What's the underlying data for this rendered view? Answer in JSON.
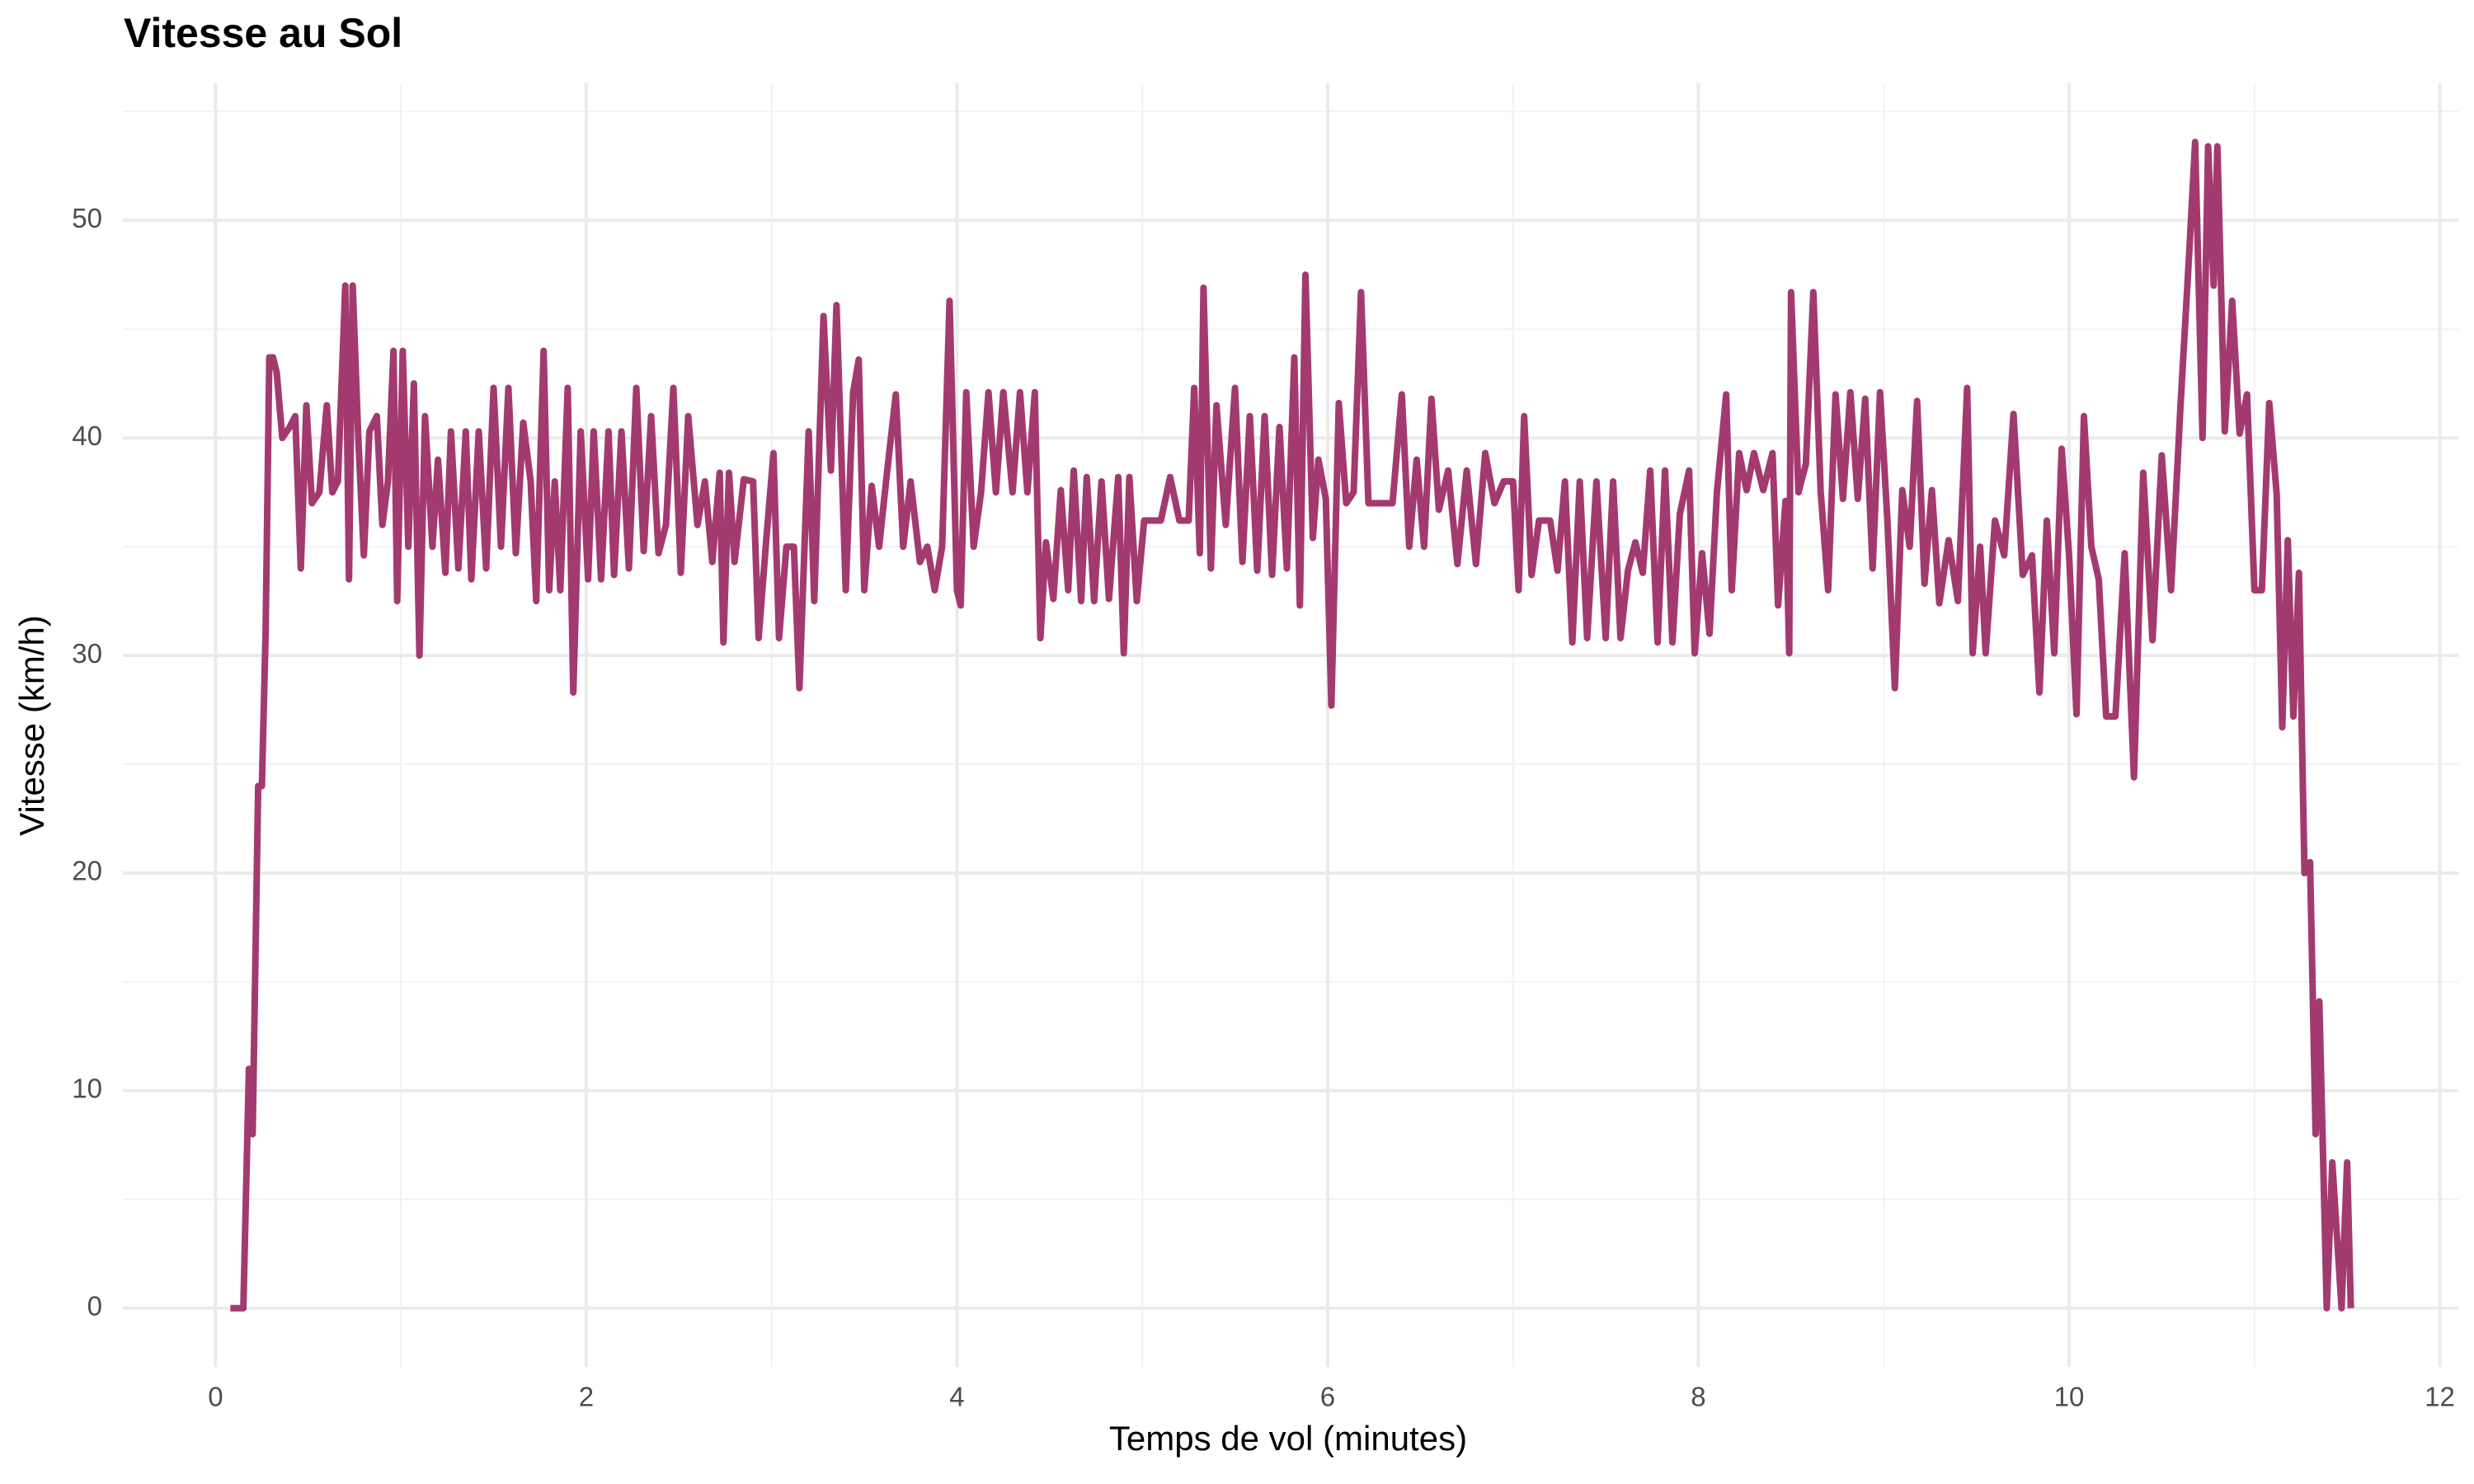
{
  "chart_data": {
    "type": "line",
    "title": "Vitesse au Sol",
    "x_label": "Temps de vol (minutes)",
    "y_label": "Vitesse (km/h)",
    "xlim": [
      -0.5,
      12.1
    ],
    "ylim": [
      -2.7,
      56.3
    ],
    "xticks": [
      0,
      2,
      4,
      6,
      8,
      10,
      12
    ],
    "yticks": [
      0,
      10,
      20,
      30,
      40,
      50
    ],
    "grid": true,
    "minor_grid": true,
    "series": [
      {
        "name": "Vitesse",
        "color": "#a33a6f",
        "x": [
          0.08,
          0.15,
          0.18,
          0.2,
          0.23,
          0.25,
          0.27,
          0.29,
          0.31,
          0.33,
          0.36,
          0.4,
          0.43,
          0.46,
          0.49,
          0.52,
          0.56,
          0.6,
          0.63,
          0.66,
          0.7,
          0.72,
          0.74,
          0.77,
          0.8,
          0.83,
          0.87,
          0.9,
          0.93,
          0.96,
          0.98,
          1.01,
          1.04,
          1.07,
          1.1,
          1.13,
          1.17,
          1.2,
          1.24,
          1.27,
          1.31,
          1.35,
          1.38,
          1.42,
          1.46,
          1.5,
          1.54,
          1.58,
          1.62,
          1.66,
          1.7,
          1.73,
          1.77,
          1.8,
          1.83,
          1.86,
          1.9,
          1.93,
          1.97,
          2.01,
          2.04,
          2.08,
          2.12,
          2.15,
          2.19,
          2.23,
          2.27,
          2.31,
          2.35,
          2.39,
          2.43,
          2.47,
          2.51,
          2.55,
          2.6,
          2.64,
          2.68,
          2.72,
          2.74,
          2.77,
          2.8,
          2.85,
          2.9,
          2.93,
          2.97,
          3.01,
          3.04,
          3.08,
          3.12,
          3.15,
          3.2,
          3.23,
          3.28,
          3.32,
          3.35,
          3.4,
          3.44,
          3.47,
          3.5,
          3.54,
          3.58,
          3.62,
          3.67,
          3.71,
          3.75,
          3.8,
          3.84,
          3.88,
          3.92,
          3.96,
          4.0,
          4.02,
          4.05,
          4.09,
          4.13,
          4.17,
          4.21,
          4.25,
          4.3,
          4.34,
          4.38,
          4.42,
          4.45,
          4.48,
          4.52,
          4.56,
          4.6,
          4.63,
          4.67,
          4.7,
          4.74,
          4.78,
          4.82,
          4.87,
          4.9,
          4.93,
          4.97,
          5.01,
          5.1,
          5.15,
          5.2,
          5.25,
          5.28,
          5.31,
          5.33,
          5.37,
          5.4,
          5.45,
          5.5,
          5.54,
          5.58,
          5.62,
          5.66,
          5.7,
          5.74,
          5.78,
          5.82,
          5.85,
          5.88,
          5.92,
          5.95,
          5.99,
          6.02,
          6.06,
          6.1,
          6.14,
          6.18,
          6.22,
          6.3,
          6.35,
          6.4,
          6.44,
          6.48,
          6.52,
          6.56,
          6.6,
          6.65,
          6.7,
          6.75,
          6.8,
          6.85,
          6.9,
          6.95,
          7.0,
          7.03,
          7.06,
          7.1,
          7.14,
          7.2,
          7.24,
          7.28,
          7.32,
          7.36,
          7.4,
          7.45,
          7.5,
          7.54,
          7.58,
          7.62,
          7.66,
          7.7,
          7.74,
          7.78,
          7.82,
          7.86,
          7.9,
          7.95,
          7.98,
          8.02,
          8.06,
          8.1,
          8.15,
          8.18,
          8.22,
          8.26,
          8.3,
          8.35,
          8.4,
          8.43,
          8.47,
          8.49,
          8.5,
          8.54,
          8.58,
          8.62,
          8.66,
          8.7,
          8.74,
          8.78,
          8.82,
          8.86,
          8.9,
          8.94,
          8.98,
          9.02,
          9.06,
          9.1,
          9.14,
          9.18,
          9.22,
          9.26,
          9.3,
          9.35,
          9.4,
          9.45,
          9.48,
          9.52,
          9.55,
          9.6,
          9.65,
          9.7,
          9.75,
          9.8,
          9.84,
          9.88,
          9.92,
          9.96,
          10.0,
          10.04,
          10.08,
          10.12,
          10.16,
          10.2,
          10.25,
          10.3,
          10.35,
          10.4,
          10.45,
          10.5,
          10.55,
          10.6,
          10.65,
          10.68,
          10.72,
          10.75,
          10.78,
          10.8,
          10.84,
          10.88,
          10.92,
          10.96,
          11.0,
          11.04,
          11.08,
          11.12,
          11.15,
          11.18,
          11.21,
          11.24,
          11.27,
          11.3,
          11.33,
          11.35,
          11.39,
          11.42,
          11.47,
          11.5,
          11.52
        ],
        "values": [
          0,
          0,
          11,
          8,
          24,
          24,
          31,
          43.7,
          43.7,
          43,
          40,
          40.5,
          41,
          34,
          41.5,
          37,
          37.5,
          41.5,
          37.5,
          38,
          47,
          33.5,
          47,
          40,
          34.6,
          40.3,
          41,
          36,
          38,
          44,
          32.5,
          44,
          35,
          42.5,
          30,
          41,
          35,
          39,
          33.8,
          40.3,
          34,
          40.3,
          33.5,
          40.3,
          34,
          42.3,
          35,
          42.3,
          34.7,
          40.7,
          38,
          32.5,
          44,
          33,
          38,
          33,
          42.3,
          28.3,
          40.3,
          33.5,
          40.3,
          33.5,
          40.3,
          33.7,
          40.3,
          34,
          42.3,
          34.8,
          41,
          34.7,
          36,
          42.3,
          33.8,
          41,
          36,
          38,
          34.3,
          38.4,
          30.6,
          38.4,
          34.3,
          38.1,
          38,
          30.8,
          35.2,
          39.3,
          30.8,
          35,
          35,
          28.5,
          40.3,
          32.5,
          45.6,
          38.5,
          46.1,
          33,
          42.1,
          43.6,
          33,
          37.8,
          35,
          38.2,
          42,
          35,
          38,
          34.3,
          35,
          33,
          35,
          46.3,
          33,
          32.3,
          42.1,
          35,
          37.5,
          42.1,
          37.5,
          42.1,
          37.5,
          42.1,
          37.5,
          42.1,
          30.8,
          35.2,
          32.6,
          37.6,
          33,
          38.5,
          32.5,
          38.2,
          32.5,
          38,
          32.6,
          38.2,
          30.1,
          38.2,
          32.5,
          36.2,
          36.2,
          38.2,
          36.2,
          36.2,
          42.3,
          34.7,
          46.9,
          34,
          41.5,
          36,
          42.3,
          34.3,
          41,
          33.9,
          41,
          33.7,
          40.5,
          34,
          43.7,
          32.3,
          47.5,
          35.4,
          39,
          37.2,
          27.7,
          41.6,
          37,
          37.5,
          46.7,
          37,
          37,
          37,
          42,
          35,
          39,
          35,
          41.8,
          36.7,
          38.5,
          34.2,
          38.5,
          34.2,
          39.3,
          37,
          38,
          38,
          33,
          41,
          33.7,
          36.2,
          36.2,
          33.9,
          38,
          30.6,
          38,
          30.8,
          38,
          30.8,
          38,
          30.8,
          33.9,
          35.2,
          33.8,
          38.5,
          30.6,
          38.5,
          30.6,
          36.5,
          38.5,
          30.1,
          34.7,
          31,
          37.5,
          42,
          33,
          39.3,
          37.6,
          39.3,
          37.6,
          39.3,
          32.3,
          37.1,
          30.1,
          46.7,
          37.5,
          38.8,
          46.7,
          37.5,
          33,
          42,
          37.2,
          42.1,
          37.2,
          41.8,
          34,
          42.1,
          36.2,
          28.5,
          37.6,
          35,
          41.7,
          33.3,
          37.6,
          32.4,
          35.3,
          32.5,
          42.3,
          30.1,
          35,
          30.1,
          36.2,
          34.6,
          41.1,
          33.7,
          34.6,
          28.3,
          36.2,
          30.1,
          39.5,
          34.6,
          27.3,
          41,
          35,
          33.5,
          27.2,
          27.2,
          34.7,
          24.4,
          38.4,
          30.7,
          39.2,
          33,
          41.3,
          48.8,
          53.6,
          40,
          53.4,
          47,
          53.4,
          40.3,
          46.3,
          40.2,
          42,
          33,
          33,
          41.6,
          37.4,
          26.7,
          35.3,
          27.2,
          33.8,
          20,
          20.5,
          8,
          14.1,
          0,
          6.7,
          0,
          6.7,
          0
        ]
      }
    ]
  }
}
